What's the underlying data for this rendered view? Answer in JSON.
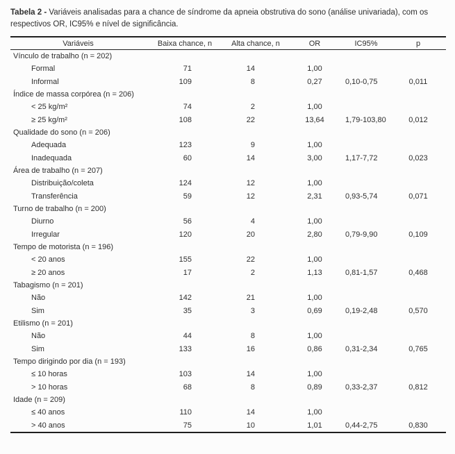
{
  "caption": {
    "label": "Tabela 2 -",
    "text": " Variáveis analisadas para a chance de síndrome da apneia obstrutiva do sono (análise univariada), com os respectivos OR, IC95% e nível de significância."
  },
  "table": {
    "columns": [
      "Variáveis",
      "Baixa chance, n",
      "Alta chance, n",
      "OR",
      "IC95%",
      "p"
    ],
    "column_keys": [
      "variavel",
      "baixa-chance",
      "alta-chance",
      "or",
      "ic95",
      "p"
    ],
    "groups": [
      {
        "label": "Vínculo de trabalho (n = 202)",
        "items": [
          {
            "label": "Formal",
            "baixa": "71",
            "alta": "14",
            "or": "1,00",
            "ic95": "",
            "p": ""
          },
          {
            "label": "Informal",
            "baixa": "109",
            "alta": "8",
            "or": "0,27",
            "ic95": "0,10-0,75",
            "p": "0,011"
          }
        ]
      },
      {
        "label": "Índice de massa corpórea (n = 206)",
        "items": [
          {
            "label": "< 25 kg/m²",
            "baixa": "74",
            "alta": "2",
            "or": "1,00",
            "ic95": "",
            "p": ""
          },
          {
            "label": "≥ 25 kg/m²",
            "baixa": "108",
            "alta": "22",
            "or": "13,64",
            "ic95": "1,79-103,80",
            "p": "0,012"
          }
        ]
      },
      {
        "label": "Qualidade do sono (n = 206)",
        "items": [
          {
            "label": "Adequada",
            "baixa": "123",
            "alta": "9",
            "or": "1,00",
            "ic95": "",
            "p": ""
          },
          {
            "label": "Inadequada",
            "baixa": "60",
            "alta": "14",
            "or": "3,00",
            "ic95": "1,17-7,72",
            "p": "0,023"
          }
        ]
      },
      {
        "label": "Área de trabalho (n = 207)",
        "items": [
          {
            "label": "Distribuição/coleta",
            "baixa": "124",
            "alta": "12",
            "or": "1,00",
            "ic95": "",
            "p": ""
          },
          {
            "label": "Transferência",
            "baixa": "59",
            "alta": "12",
            "or": "2,31",
            "ic95": "0,93-5,74",
            "p": "0,071"
          }
        ]
      },
      {
        "label": "Turno de trabalho (n = 200)",
        "items": [
          {
            "label": "Diurno",
            "baixa": "56",
            "alta": "4",
            "or": "1,00",
            "ic95": "",
            "p": ""
          },
          {
            "label": "Irregular",
            "baixa": "120",
            "alta": "20",
            "or": "2,80",
            "ic95": "0,79-9,90",
            "p": "0,109"
          }
        ]
      },
      {
        "label": "Tempo de motorista (n = 196)",
        "items": [
          {
            "label": "< 20 anos",
            "baixa": "155",
            "alta": "22",
            "or": "1,00",
            "ic95": "",
            "p": ""
          },
          {
            "label": "≥ 20 anos",
            "baixa": "17",
            "alta": "2",
            "or": "1,13",
            "ic95": "0,81-1,57",
            "p": "0,468"
          }
        ]
      },
      {
        "label": "Tabagismo (n = 201)",
        "items": [
          {
            "label": "Não",
            "baixa": "142",
            "alta": "21",
            "or": "1,00",
            "ic95": "",
            "p": ""
          },
          {
            "label": "Sim",
            "baixa": "35",
            "alta": "3",
            "or": "0,69",
            "ic95": "0,19-2,48",
            "p": "0,570"
          }
        ]
      },
      {
        "label": "Etilismo (n = 201)",
        "items": [
          {
            "label": "Não",
            "baixa": "44",
            "alta": "8",
            "or": "1,00",
            "ic95": "",
            "p": ""
          },
          {
            "label": "Sim",
            "baixa": "133",
            "alta": "16",
            "or": "0,86",
            "ic95": "0,31-2,34",
            "p": "0,765"
          }
        ]
      },
      {
        "label": "Tempo dirigindo por dia (n = 193)",
        "items": [
          {
            "label": "≤ 10 horas",
            "baixa": "103",
            "alta": "14",
            "or": "1,00",
            "ic95": "",
            "p": ""
          },
          {
            "label": "> 10 horas",
            "baixa": "68",
            "alta": "8",
            "or": "0,89",
            "ic95": "0,33-2,37",
            "p": "0,812"
          }
        ]
      },
      {
        "label": "Idade (n = 209)",
        "items": [
          {
            "label": "≤ 40 anos",
            "baixa": "110",
            "alta": "14",
            "or": "1,00",
            "ic95": "",
            "p": ""
          },
          {
            "label": "> 40 anos",
            "baixa": "75",
            "alta": "10",
            "or": "1,01",
            "ic95": "0,44-2,75",
            "p": "0,830"
          }
        ]
      }
    ]
  },
  "colors": {
    "text": "#2e2e2e",
    "rule": "#1f1f1f",
    "background": "#fcfcfc"
  }
}
